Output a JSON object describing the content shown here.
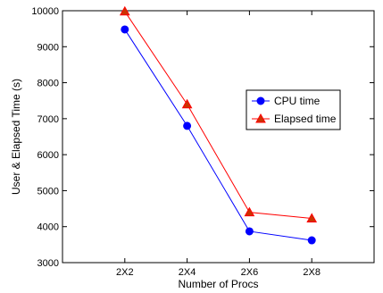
{
  "chart_data": {
    "type": "line",
    "categories": [
      "2X2",
      "2X4",
      "2X6",
      "2X8"
    ],
    "series": [
      {
        "name": "CPU time",
        "values": [
          9480,
          6800,
          3870,
          3620
        ],
        "color": "#0000ff",
        "marker": "circle"
      },
      {
        "name": "Elapsed time",
        "values": [
          9980,
          7400,
          4400,
          4230
        ],
        "color": "#ff0000",
        "marker": "triangle",
        "marker_fill": "#cc3300"
      }
    ],
    "xlabel": "Number of Procs",
    "ylabel": "User & Elapsed Time (s)",
    "ylim": [
      3000,
      10000
    ],
    "yticks": [
      3000,
      4000,
      5000,
      6000,
      7000,
      8000,
      9000,
      10000
    ],
    "grid": false,
    "legend_position": "right-center"
  }
}
